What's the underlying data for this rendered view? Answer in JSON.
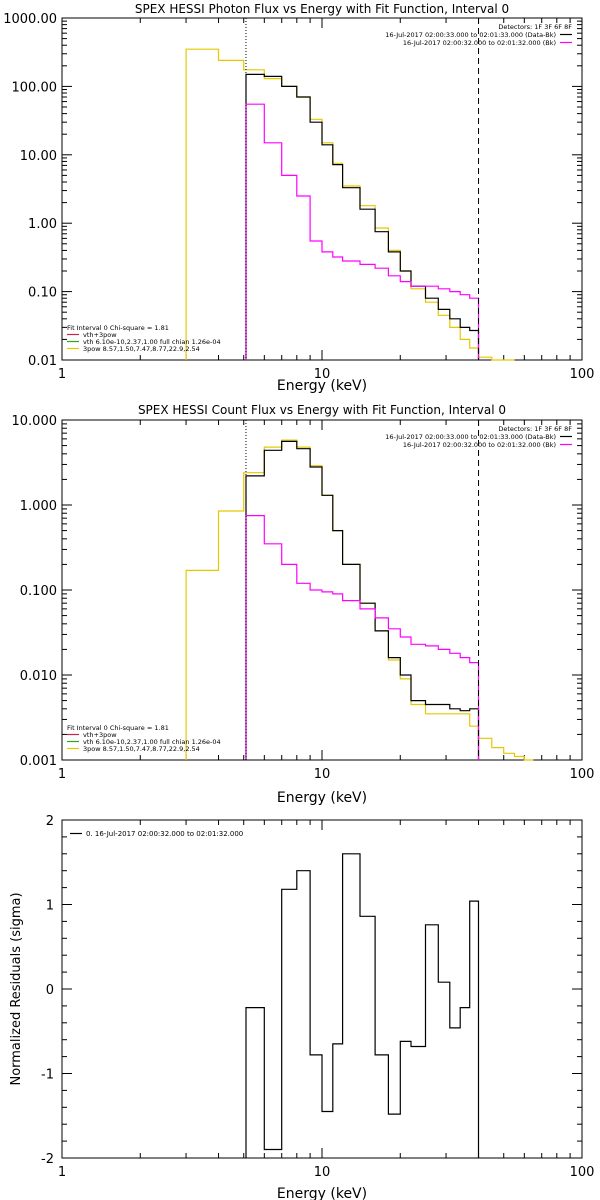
{
  "colors": {
    "total": "#000000",
    "vth": "#ff00ff",
    "vth_plus_3pow": "#e6c800",
    "bpow": "#e6c800",
    "fit_vth_legend": "#22aa22",
    "fit_bpow_legend": "#e6c800",
    "fit_total_legend": "#cc2244",
    "residual": "#000000",
    "background": "#ffffff"
  },
  "chart_data": [
    {
      "type": "line",
      "title": "SPEX HESSI Photon Flux vs Energy with Fit Function, Interval 0",
      "xlabel": "Energy (keV)",
      "ylabel": "",
      "xscale": "log",
      "yscale": "log",
      "xlim": [
        1,
        100
      ],
      "ylim": [
        0.01,
        1000
      ],
      "xticks": [
        "1",
        "10",
        "100"
      ],
      "yticks": [
        "0.01",
        "0.10",
        "1.00",
        "10.00",
        "100.00",
        "1000.00"
      ],
      "vlines": [
        {
          "x": 5.1,
          "style": "dotted"
        },
        {
          "x": 40,
          "style": "dashed"
        }
      ],
      "legend_top": {
        "detectors": "Detectors: 1F 3F 6F 8F",
        "rows": [
          {
            "text": "16-Jul-2017 02:00:33.000 to 02:01:33.000 (Data-Bk)",
            "color": "total"
          },
          {
            "text": "16-Jul-2017 02:00:32.000 to 02:01:32.000 (Bk)",
            "color": "vth"
          }
        ]
      },
      "legend_bottom": {
        "header": "Fit Interval 0   Chi-square = 1.81",
        "rows": [
          {
            "text": "vth+3pow",
            "color": "fit_total_legend"
          },
          {
            "text": "vth 6.10e-10,2.37,1.00   full chian 1.26e-04",
            "color": "fit_vth_legend"
          },
          {
            "text": "3pow 8.57,1.50,7.47,8.77,22.9,2.54",
            "color": "fit_bpow_legend"
          }
        ]
      },
      "series": [
        {
          "color": "vth_plus_3pow",
          "edges": [
            3,
            4,
            5,
            6,
            7,
            8,
            9,
            10,
            11,
            12,
            14,
            16,
            18,
            20,
            22,
            25,
            28,
            31,
            34,
            37,
            40,
            45,
            50,
            55
          ],
          "values": [
            350,
            240,
            175,
            130,
            100,
            70,
            33,
            15,
            7.5,
            3.5,
            1.8,
            0.85,
            0.4,
            0.2,
            0.11,
            0.07,
            0.045,
            0.03,
            0.02,
            0.015,
            0.011,
            0.0095,
            0.0085
          ]
        },
        {
          "color": "total",
          "edges": [
            5.1,
            6,
            7,
            8,
            9,
            10,
            11,
            12,
            14,
            16,
            18,
            20,
            22,
            25,
            28,
            31,
            34,
            37,
            40
          ],
          "values": [
            150,
            140,
            100,
            70,
            30,
            14,
            7.2,
            3.3,
            1.6,
            0.75,
            0.38,
            0.2,
            0.12,
            0.08,
            0.055,
            0.04,
            0.03,
            0.027
          ]
        },
        {
          "color": "vth",
          "edges": [
            5.1,
            6,
            7,
            8,
            9,
            10,
            11,
            12,
            14,
            16,
            18,
            20,
            22,
            25,
            28,
            31,
            34,
            37,
            40
          ],
          "values": [
            55,
            15,
            5,
            2.5,
            0.55,
            0.38,
            0.32,
            0.28,
            0.25,
            0.22,
            0.17,
            0.14,
            0.12,
            0.12,
            0.11,
            0.1,
            0.09,
            0.08
          ]
        }
      ]
    },
    {
      "type": "line",
      "title": "SPEX HESSI Count Flux vs Energy with Fit Function, Interval 0",
      "xlabel": "Energy (keV)",
      "ylabel": "",
      "xscale": "log",
      "yscale": "log",
      "xlim": [
        1,
        100
      ],
      "ylim": [
        0.001,
        10
      ],
      "xticks": [
        "1",
        "10",
        "100"
      ],
      "yticks": [
        "0.001",
        "0.010",
        "0.100",
        "1.000",
        "10.000"
      ],
      "vlines": [
        {
          "x": 5.1,
          "style": "dotted"
        },
        {
          "x": 40,
          "style": "dashed"
        }
      ],
      "legend_top": {
        "detectors": "Detectors: 1F 3F 6F 8F",
        "rows": [
          {
            "text": "16-Jul-2017 02:00:33.000 to 02:01:33.000 (Data-Bk)",
            "color": "total"
          },
          {
            "text": "16-Jul-2017 02:00:32.000 to 02:01:32.000 (Bk)",
            "color": "vth"
          }
        ]
      },
      "legend_bottom": {
        "header": "Fit Interval 0   Chi-square = 1.81",
        "rows": [
          {
            "text": "vth+3pow",
            "color": "fit_total_legend"
          },
          {
            "text": "vth 6.10e-10,2.37,1.00   full chian 1.26e-04",
            "color": "fit_vth_legend"
          },
          {
            "text": "3pow 8.57,1.50,7.47,8.77,22.9,2.54",
            "color": "fit_bpow_legend"
          }
        ]
      },
      "series": [
        {
          "color": "vth_plus_3pow",
          "edges": [
            3,
            4,
            5,
            6,
            7,
            8,
            9,
            10,
            11,
            12,
            14,
            16,
            18,
            20,
            22,
            25,
            28,
            31,
            34,
            37,
            40,
            45,
            50,
            55,
            60,
            65
          ],
          "values": [
            0.17,
            0.85,
            2.4,
            4.8,
            5.8,
            4.8,
            2.9,
            1.3,
            0.5,
            0.2,
            0.07,
            0.033,
            0.015,
            0.009,
            0.0045,
            0.0035,
            0.0035,
            0.0035,
            0.0035,
            0.0025,
            0.0018,
            0.0014,
            0.0012,
            0.0011,
            0.001
          ]
        },
        {
          "color": "total",
          "edges": [
            5.1,
            6,
            7,
            8,
            9,
            10,
            11,
            12,
            14,
            16,
            18,
            20,
            22,
            25,
            28,
            31,
            34,
            37,
            40
          ],
          "values": [
            2.2,
            4.4,
            5.6,
            4.6,
            2.8,
            1.3,
            0.5,
            0.2,
            0.07,
            0.033,
            0.016,
            0.01,
            0.005,
            0.0045,
            0.0045,
            0.004,
            0.0038,
            0.004
          ]
        },
        {
          "color": "vth",
          "edges": [
            5.1,
            6,
            7,
            8,
            9,
            10,
            11,
            12,
            14,
            16,
            18,
            20,
            22,
            25,
            28,
            31,
            34,
            37,
            40
          ],
          "values": [
            0.75,
            0.35,
            0.2,
            0.12,
            0.1,
            0.095,
            0.09,
            0.075,
            0.06,
            0.047,
            0.035,
            0.028,
            0.023,
            0.022,
            0.02,
            0.018,
            0.016,
            0.014
          ]
        }
      ]
    },
    {
      "type": "line",
      "title": "",
      "xlabel": "Energy (keV)",
      "ylabel": "Normalized Residuals (sigma)",
      "xscale": "log",
      "yscale": "linear",
      "xlim": [
        1,
        100
      ],
      "ylim": [
        -2,
        2
      ],
      "xticks": [
        "1",
        "10",
        "100"
      ],
      "yticks": [
        "-2",
        "-1",
        "0",
        "1",
        "2"
      ],
      "legend": {
        "text": "0. 16-Jul-2017 02:00:32.000 to 02:01:32.000"
      },
      "series": [
        {
          "color": "residual",
          "edges": [
            5.1,
            6,
            7,
            8,
            9,
            10,
            11,
            12,
            14,
            16,
            18,
            20,
            22,
            25,
            28,
            31,
            34,
            37,
            40
          ],
          "values": [
            -0.22,
            -1.9,
            1.18,
            1.4,
            -0.78,
            -1.45,
            -0.65,
            1.6,
            0.86,
            -0.78,
            -1.48,
            -0.62,
            -0.68,
            0.76,
            0.08,
            -0.46,
            -0.22,
            1.04
          ]
        }
      ]
    }
  ]
}
